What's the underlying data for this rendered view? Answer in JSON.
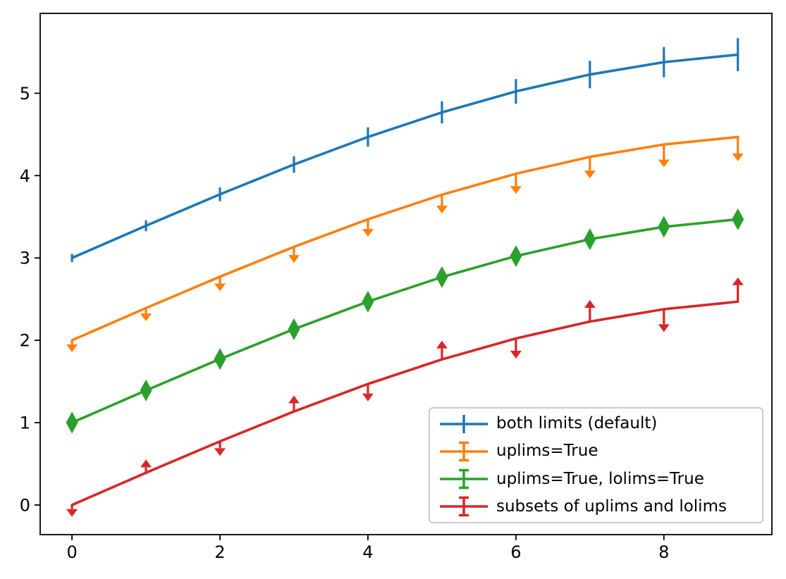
{
  "figure": {
    "background": "#ffffff",
    "text_color": "#000000",
    "spine_color": "#000000"
  },
  "chart_data": {
    "type": "line",
    "title": "",
    "xlabel": "",
    "ylabel": "",
    "grid": false,
    "legend_position": "lower right",
    "x": [
      0,
      1,
      2,
      3,
      4,
      5,
      6,
      7,
      8,
      9
    ],
    "yerr": [
      0.05,
      0.0667,
      0.0833,
      0.1,
      0.1167,
      0.1333,
      0.15,
      0.1667,
      0.1833,
      0.2
    ],
    "xtick_labels": [
      "0",
      "2",
      "4",
      "6",
      "8"
    ],
    "xtick_values": [
      0,
      2,
      4,
      6,
      8
    ],
    "ytick_labels": [
      "0",
      "1",
      "2",
      "3",
      "4",
      "5"
    ],
    "ytick_values": [
      0,
      1,
      2,
      3,
      4,
      5
    ],
    "xlim": [
      -0.43,
      9.46
    ],
    "ylim": [
      -0.36,
      5.97
    ],
    "series": [
      {
        "name": "both limits (default)",
        "color": "#1f77b4",
        "limit_style": "both-bars",
        "values": [
          3.0,
          3.3911,
          3.7725,
          4.135,
          4.4695,
          4.7678,
          5.0225,
          5.2275,
          5.3776,
          5.4692
        ]
      },
      {
        "name": "uplims=True",
        "color": "#ff7f0e",
        "limit_style": "uplims",
        "values": [
          2.0,
          2.3911,
          2.7725,
          3.135,
          3.4695,
          3.7678,
          4.0225,
          4.2275,
          4.3776,
          4.4692
        ]
      },
      {
        "name": "uplims=True, lolims=True",
        "color": "#2ca02c",
        "limit_style": "uplims-lolims",
        "values": [
          1.0,
          1.3911,
          1.7725,
          2.135,
          2.4695,
          2.7678,
          3.0225,
          3.2275,
          3.3776,
          3.4692
        ]
      },
      {
        "name": "subsets of uplims and lolims",
        "color": "#d62728",
        "limit_style": "subsets",
        "uplims_points": [
          0,
          2,
          4,
          6,
          8
        ],
        "lolims_points": [
          1,
          3,
          5,
          7,
          9
        ],
        "values": [
          0.0,
          0.3911,
          0.7725,
          1.135,
          1.4695,
          1.7678,
          2.0225,
          2.2275,
          2.3776,
          2.4692
        ]
      }
    ]
  }
}
